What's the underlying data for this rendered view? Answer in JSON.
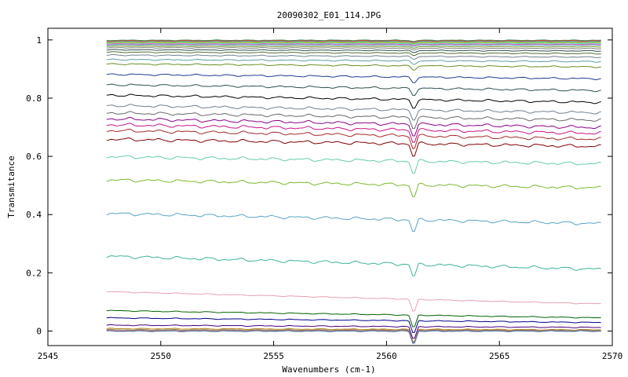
{
  "chart_data": {
    "type": "line",
    "title": "20090302_E01_114.JPG",
    "xlabel": "Wavenumbers (cm-1)",
    "ylabel": "Transmitance",
    "xlim": [
      2545,
      2570
    ],
    "ylim": [
      -0.05,
      1.04
    ],
    "x_ticks": [
      2545,
      2550,
      2555,
      2560,
      2565,
      2570
    ],
    "y_ticks": [
      0,
      0.2,
      0.4,
      0.6,
      0.8,
      1
    ],
    "x_tick_labels": [
      "2545",
      "2550",
      "2555",
      "2560",
      "2565",
      "2570"
    ],
    "y_tick_labels": [
      "0",
      "0.2",
      "0.4",
      "0.6",
      "0.8",
      "1"
    ],
    "x_range": [
      2547.6,
      2569.5
    ],
    "absorption_line_x": 2561.2,
    "grid": false,
    "legend": "none",
    "series": [
      {
        "start": 1.0,
        "end": 1.0,
        "color": "#2e8b57"
      },
      {
        "start": 0.998,
        "end": 0.998,
        "color": "#ff4500"
      },
      {
        "start": 0.996,
        "end": 0.996,
        "color": "#1e90ff"
      },
      {
        "start": 0.994,
        "end": 0.994,
        "color": "#daa520"
      },
      {
        "start": 0.992,
        "end": 0.992,
        "color": "#9acd32"
      },
      {
        "start": 0.99,
        "end": 0.99,
        "color": "#40e0d0"
      },
      {
        "start": 0.988,
        "end": 0.987,
        "color": "#ff69b4"
      },
      {
        "start": 0.985,
        "end": 0.984,
        "color": "#4682b4"
      },
      {
        "start": 0.98,
        "end": 0.978,
        "color": "#6b8e23"
      },
      {
        "start": 0.975,
        "end": 0.972,
        "color": "#808080"
      },
      {
        "start": 0.968,
        "end": 0.964,
        "color": "#2f4f4f"
      },
      {
        "start": 0.96,
        "end": 0.955,
        "color": "#556b2f"
      },
      {
        "start": 0.95,
        "end": 0.943,
        "color": "#708090"
      },
      {
        "start": 0.935,
        "end": 0.928,
        "color": "#5f9ea0"
      },
      {
        "start": 0.92,
        "end": 0.91,
        "color": "#6b8e23"
      },
      {
        "start": 0.885,
        "end": 0.87,
        "color": "#1f3a93"
      },
      {
        "start": 0.85,
        "end": 0.83,
        "color": "#2f4f4f"
      },
      {
        "start": 0.815,
        "end": 0.79,
        "color": "#000000"
      },
      {
        "start": 0.78,
        "end": 0.755,
        "color": "#708090"
      },
      {
        "start": 0.755,
        "end": 0.73,
        "color": "#696969"
      },
      {
        "start": 0.735,
        "end": 0.705,
        "color": "#8b008b"
      },
      {
        "start": 0.715,
        "end": 0.685,
        "color": "#c71585"
      },
      {
        "start": 0.695,
        "end": 0.665,
        "color": "#a52a2a"
      },
      {
        "start": 0.665,
        "end": 0.64,
        "color": "#800000"
      },
      {
        "start": 0.605,
        "end": 0.58,
        "color": "#66cdaa"
      },
      {
        "start": 0.525,
        "end": 0.498,
        "color": "#7cba2c"
      },
      {
        "start": 0.41,
        "end": 0.375,
        "color": "#5ba3c5"
      },
      {
        "start": 0.263,
        "end": 0.218,
        "color": "#3cb39a"
      },
      {
        "start": 0.137,
        "end": 0.095,
        "color": "#e8a0b0"
      },
      {
        "start": 0.072,
        "end": 0.047,
        "color": "#006400"
      },
      {
        "start": 0.047,
        "end": 0.031,
        "color": "#00008b"
      },
      {
        "start": 0.022,
        "end": 0.014,
        "color": "#4b0082"
      },
      {
        "start": 0.01,
        "end": 0.006,
        "color": "#b8860b"
      },
      {
        "start": 0.006,
        "end": 0.004,
        "color": "#808080"
      },
      {
        "start": 0.003,
        "end": 0.002,
        "color": "#cd5c5c"
      },
      {
        "start": 0.001,
        "end": 0.001,
        "color": "#4682b4"
      }
    ]
  }
}
